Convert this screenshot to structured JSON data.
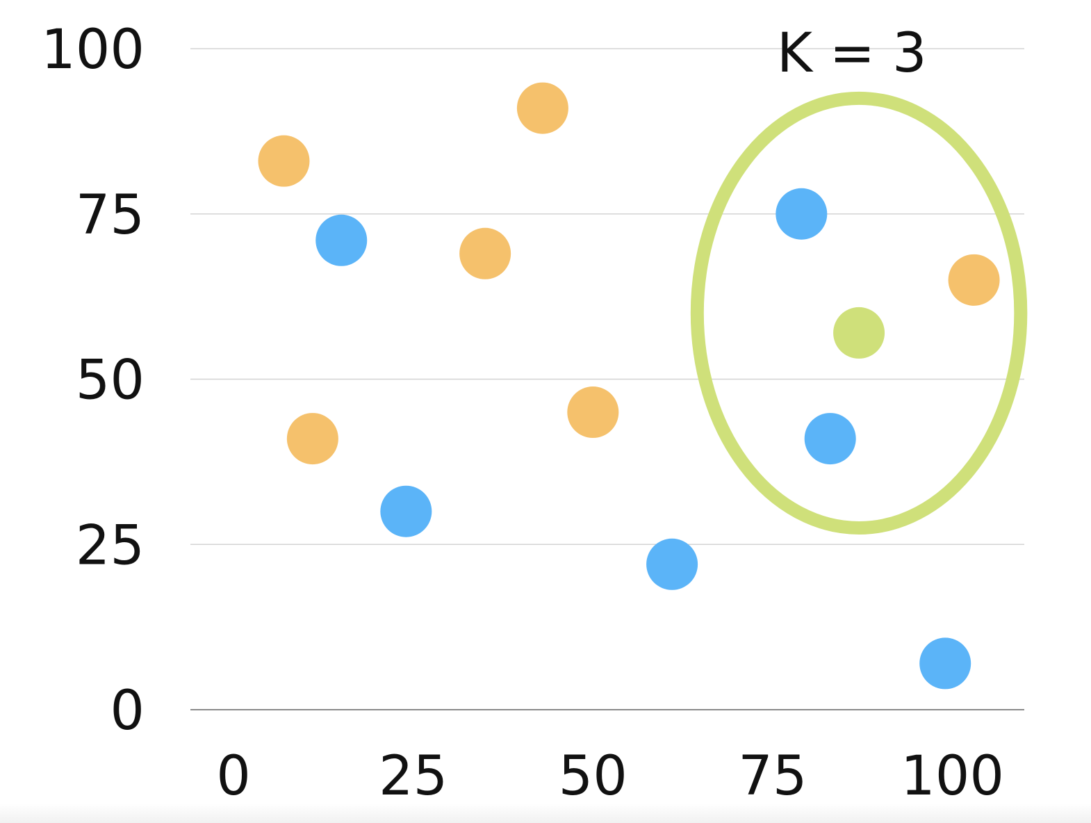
{
  "chart_data": {
    "type": "scatter",
    "title": "",
    "xlabel": "",
    "ylabel": "",
    "xlim": [
      -6,
      110
    ],
    "ylim": [
      0,
      100
    ],
    "x_ticks": [
      0,
      25,
      50,
      75,
      100
    ],
    "y_ticks": [
      0,
      25,
      50,
      75,
      100
    ],
    "x_tick_labels": [
      "0",
      "25",
      "50",
      "75",
      "100"
    ],
    "y_tick_labels": [
      "0",
      "25",
      "50",
      "75",
      "100"
    ],
    "grid": true,
    "colors": {
      "orange": "#F5C16C",
      "blue": "#5BB4F8",
      "green": "#CFE07A"
    },
    "series": [
      {
        "color_key": "orange",
        "points": [
          {
            "x": 7,
            "y": 83
          },
          {
            "x": 35,
            "y": 69
          },
          {
            "x": 43,
            "y": 91
          },
          {
            "x": 11,
            "y": 41
          },
          {
            "x": 50,
            "y": 45
          },
          {
            "x": 103,
            "y": 65
          }
        ]
      },
      {
        "color_key": "blue",
        "points": [
          {
            "x": 15,
            "y": 71
          },
          {
            "x": 24,
            "y": 30
          },
          {
            "x": 61,
            "y": 22
          },
          {
            "x": 79,
            "y": 75
          },
          {
            "x": 83,
            "y": 41
          },
          {
            "x": 99,
            "y": 7
          }
        ]
      },
      {
        "color_key": "green",
        "points": [
          {
            "x": 87,
            "y": 57
          }
        ]
      }
    ],
    "annotations": [
      {
        "type": "ellipse",
        "color_key": "green",
        "cx": 87,
        "cy": 60,
        "rx": 22.5,
        "ry": 32.5
      },
      {
        "type": "text",
        "text": "K = 3",
        "x": 86,
        "y": 100
      }
    ]
  }
}
